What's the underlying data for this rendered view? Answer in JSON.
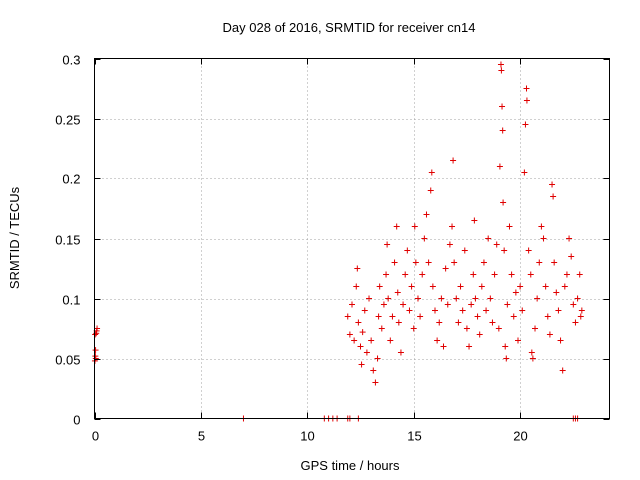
{
  "chart_data": {
    "type": "scatter",
    "title": "Day 028 of 2016, SRMTID for receiver cn14",
    "xlabel": "GPS time / hours",
    "ylabel": "SRMTID / TECUs",
    "xlim": [
      0,
      24.2
    ],
    "ylim": [
      0,
      0.3
    ],
    "xticks": [
      0,
      5,
      10,
      15,
      20
    ],
    "xtick_labels": [
      "0",
      "5",
      "10",
      "15",
      "20"
    ],
    "yticks": [
      0,
      0.05,
      0.1,
      0.15,
      0.2,
      0.25,
      0.3
    ],
    "ytick_labels": [
      "0",
      "0.05",
      "0.1",
      "0.15",
      "0.2",
      "0.25",
      "0.3"
    ],
    "grid": true,
    "marker": "+",
    "color": "#e00000",
    "series": [
      {
        "name": "SRMTID",
        "points": [
          [
            0.02,
            0.048
          ],
          [
            0.04,
            0.052
          ],
          [
            0.05,
            0.057
          ],
          [
            0.06,
            0.05
          ],
          [
            0.08,
            0.071
          ],
          [
            0.1,
            0.073
          ],
          [
            0.12,
            0.075
          ],
          [
            0.03,
            0.07
          ],
          [
            7.0,
            0.0
          ],
          [
            10.8,
            0.0
          ],
          [
            11.0,
            0.0
          ],
          [
            11.2,
            0.0
          ],
          [
            11.4,
            0.0
          ],
          [
            11.9,
            0.0
          ],
          [
            12.0,
            0.0
          ],
          [
            12.4,
            0.0
          ],
          [
            22.5,
            0.0
          ],
          [
            22.6,
            0.0
          ],
          [
            22.7,
            0.0
          ],
          [
            11.9,
            0.085
          ],
          [
            12.0,
            0.07
          ],
          [
            12.1,
            0.095
          ],
          [
            12.2,
            0.065
          ],
          [
            12.3,
            0.11
          ],
          [
            12.35,
            0.125
          ],
          [
            12.4,
            0.08
          ],
          [
            12.5,
            0.06
          ],
          [
            12.55,
            0.045
          ],
          [
            12.6,
            0.072
          ],
          [
            12.7,
            0.09
          ],
          [
            12.8,
            0.055
          ],
          [
            12.9,
            0.1
          ],
          [
            13.0,
            0.065
          ],
          [
            13.1,
            0.04
          ],
          [
            13.2,
            0.03
          ],
          [
            13.3,
            0.05
          ],
          [
            13.35,
            0.085
          ],
          [
            13.4,
            0.11
          ],
          [
            13.5,
            0.075
          ],
          [
            13.6,
            0.095
          ],
          [
            13.7,
            0.12
          ],
          [
            13.75,
            0.145
          ],
          [
            13.8,
            0.1
          ],
          [
            13.9,
            0.065
          ],
          [
            14.0,
            0.085
          ],
          [
            14.1,
            0.13
          ],
          [
            14.2,
            0.16
          ],
          [
            14.25,
            0.105
          ],
          [
            14.3,
            0.08
          ],
          [
            14.4,
            0.055
          ],
          [
            14.5,
            0.095
          ],
          [
            14.6,
            0.12
          ],
          [
            14.7,
            0.14
          ],
          [
            14.8,
            0.09
          ],
          [
            14.9,
            0.11
          ],
          [
            15.0,
            0.075
          ],
          [
            15.05,
            0.16
          ],
          [
            15.1,
            0.13
          ],
          [
            15.2,
            0.1
          ],
          [
            15.3,
            0.085
          ],
          [
            15.4,
            0.12
          ],
          [
            15.5,
            0.15
          ],
          [
            15.6,
            0.17
          ],
          [
            15.7,
            0.13
          ],
          [
            15.8,
            0.19
          ],
          [
            15.85,
            0.205
          ],
          [
            15.9,
            0.11
          ],
          [
            16.0,
            0.09
          ],
          [
            16.1,
            0.065
          ],
          [
            16.2,
            0.08
          ],
          [
            16.3,
            0.1
          ],
          [
            16.4,
            0.06
          ],
          [
            16.5,
            0.125
          ],
          [
            16.6,
            0.095
          ],
          [
            16.7,
            0.145
          ],
          [
            16.8,
            0.16
          ],
          [
            16.85,
            0.215
          ],
          [
            16.9,
            0.13
          ],
          [
            17.0,
            0.1
          ],
          [
            17.1,
            0.08
          ],
          [
            17.2,
            0.11
          ],
          [
            17.3,
            0.09
          ],
          [
            17.4,
            0.14
          ],
          [
            17.5,
            0.075
          ],
          [
            17.6,
            0.06
          ],
          [
            17.7,
            0.095
          ],
          [
            17.8,
            0.12
          ],
          [
            17.85,
            0.165
          ],
          [
            17.9,
            0.1
          ],
          [
            18.0,
            0.085
          ],
          [
            18.1,
            0.07
          ],
          [
            18.2,
            0.11
          ],
          [
            18.3,
            0.13
          ],
          [
            18.4,
            0.09
          ],
          [
            18.5,
            0.15
          ],
          [
            18.6,
            0.1
          ],
          [
            18.7,
            0.08
          ],
          [
            18.8,
            0.12
          ],
          [
            18.9,
            0.145
          ],
          [
            19.0,
            0.075
          ],
          [
            19.05,
            0.21
          ],
          [
            19.1,
            0.295
          ],
          [
            19.12,
            0.29
          ],
          [
            19.15,
            0.26
          ],
          [
            19.18,
            0.24
          ],
          [
            19.2,
            0.18
          ],
          [
            19.25,
            0.14
          ],
          [
            19.3,
            0.06
          ],
          [
            19.35,
            0.05
          ],
          [
            19.4,
            0.095
          ],
          [
            19.5,
            0.16
          ],
          [
            19.6,
            0.12
          ],
          [
            19.7,
            0.085
          ],
          [
            19.8,
            0.105
          ],
          [
            19.9,
            0.065
          ],
          [
            20.0,
            0.11
          ],
          [
            20.1,
            0.09
          ],
          [
            20.2,
            0.205
          ],
          [
            20.25,
            0.245
          ],
          [
            20.3,
            0.275
          ],
          [
            20.32,
            0.265
          ],
          [
            20.4,
            0.14
          ],
          [
            20.5,
            0.12
          ],
          [
            20.55,
            0.055
          ],
          [
            20.6,
            0.05
          ],
          [
            20.7,
            0.075
          ],
          [
            20.8,
            0.1
          ],
          [
            20.9,
            0.13
          ],
          [
            21.0,
            0.16
          ],
          [
            21.1,
            0.15
          ],
          [
            21.2,
            0.11
          ],
          [
            21.3,
            0.085
          ],
          [
            21.4,
            0.07
          ],
          [
            21.5,
            0.195
          ],
          [
            21.55,
            0.185
          ],
          [
            21.6,
            0.13
          ],
          [
            21.7,
            0.105
          ],
          [
            21.8,
            0.09
          ],
          [
            21.9,
            0.065
          ],
          [
            22.0,
            0.04
          ],
          [
            22.1,
            0.11
          ],
          [
            22.2,
            0.12
          ],
          [
            22.3,
            0.15
          ],
          [
            22.4,
            0.135
          ],
          [
            22.5,
            0.095
          ],
          [
            22.6,
            0.08
          ],
          [
            22.7,
            0.1
          ],
          [
            22.8,
            0.12
          ],
          [
            22.85,
            0.085
          ],
          [
            22.9,
            0.09
          ]
        ]
      }
    ]
  }
}
